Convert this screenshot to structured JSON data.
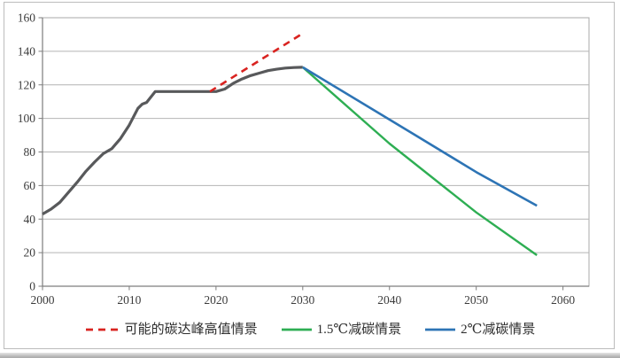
{
  "window": {
    "background": "#ffffff",
    "frame_border_color": "#bcbcbc"
  },
  "colors": {
    "grid_line": "#b4b4b4",
    "plot_border": "#a8a8a8",
    "axis_line": "#7d7d7d",
    "tick_text": "#3c3c3c",
    "historical_gray": "#58595b",
    "scenario_red": "#d92320",
    "scenario_green": "#2eae53",
    "scenario_blue": "#2d74b5"
  },
  "chart_data": {
    "type": "line",
    "title": "",
    "xlabel": "",
    "ylabel": "",
    "grid": "horizontal",
    "x_axis": {
      "min": 2000,
      "max": 2063,
      "ticks": [
        2000,
        2010,
        2020,
        2030,
        2040,
        2050,
        2060
      ]
    },
    "y_axis": {
      "min": 0,
      "max": 160,
      "ticks": [
        0,
        20,
        40,
        60,
        80,
        100,
        120,
        140,
        160
      ]
    },
    "series": [
      {
        "id": "historical",
        "legend_label": null,
        "color": "#58595b",
        "dash": null,
        "width": 3.2,
        "points": [
          [
            2000,
            43
          ],
          [
            2001,
            46
          ],
          [
            2002,
            50
          ],
          [
            2003,
            56
          ],
          [
            2004,
            62
          ],
          [
            2005,
            68.5
          ],
          [
            2006,
            74
          ],
          [
            2007,
            79
          ],
          [
            2008,
            82
          ],
          [
            2009,
            88
          ],
          [
            2010,
            96
          ],
          [
            2011,
            106
          ],
          [
            2011.5,
            108.5
          ],
          [
            2012,
            109.5
          ],
          [
            2013,
            116
          ],
          [
            2014,
            116
          ],
          [
            2015,
            116
          ],
          [
            2016,
            116
          ],
          [
            2017,
            116
          ],
          [
            2018,
            116
          ],
          [
            2019,
            116
          ],
          [
            2020,
            116
          ],
          [
            2021,
            117.5
          ],
          [
            2022,
            121
          ],
          [
            2023,
            123.5
          ],
          [
            2024,
            125.5
          ],
          [
            2025,
            127
          ],
          [
            2026,
            128.5
          ],
          [
            2027,
            129.3
          ],
          [
            2028,
            130
          ],
          [
            2029,
            130.3
          ],
          [
            2030,
            130.5
          ]
        ]
      },
      {
        "id": "peak-high-scenario",
        "legend_label": "可能的碳达峰高值情景",
        "color": "#d92320",
        "dash": [
          8,
          6
        ],
        "width": 2.6,
        "points": [
          [
            2019.3,
            116
          ],
          [
            2029.8,
            150
          ]
        ]
      },
      {
        "id": "scenario-1p5c",
        "legend_label": "1.5℃减碳情景",
        "color": "#2eae53",
        "dash": null,
        "width": 2.4,
        "points": [
          [
            2030,
            130.5
          ],
          [
            2040,
            85
          ],
          [
            2050,
            44
          ],
          [
            2057,
            18.5
          ]
        ]
      },
      {
        "id": "scenario-2c",
        "legend_label": "2℃减碳情景",
        "color": "#2d74b5",
        "dash": null,
        "width": 2.6,
        "points": [
          [
            2030,
            130.5
          ],
          [
            2043,
            90
          ],
          [
            2050,
            68
          ],
          [
            2057,
            48
          ]
        ]
      }
    ],
    "legend": {
      "position": "bottom",
      "order": [
        "peak-high-scenario",
        "scenario-1p5c",
        "scenario-2c"
      ]
    }
  }
}
